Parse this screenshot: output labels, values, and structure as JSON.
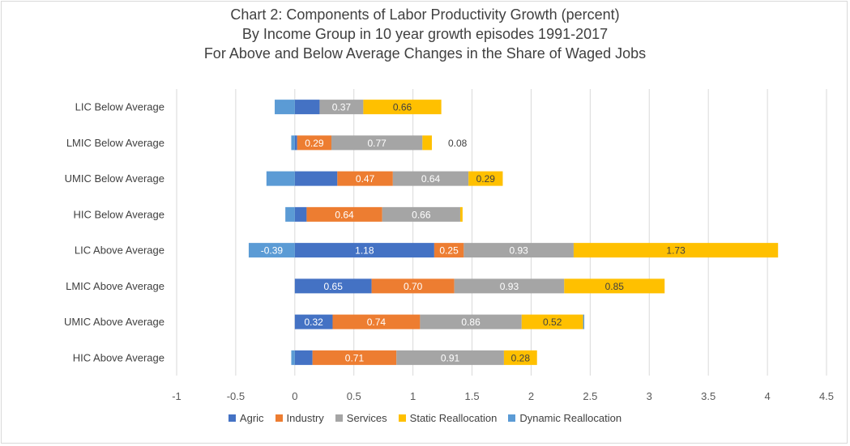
{
  "chart_data": {
    "type": "bar",
    "orientation": "horizontal",
    "stacked": true,
    "title": [
      "Chart 2: Components of Labor Productivity Growth (percent)",
      "By Income Group in 10 year growth episodes 1991-2017",
      "For Above and Below Average Changes in the Share of Waged Jobs"
    ],
    "categories": [
      "LIC Below Average",
      "LMIC Below Average",
      "UMIC Below Average",
      "HIC Below Average",
      "LIC Above Average",
      "LMIC Above Average",
      "UMIC Above Average",
      "HIC Above Average"
    ],
    "series": [
      {
        "name": "Agric",
        "color": "#4472c4",
        "values": [
          0.21,
          0.02,
          0.36,
          0.1,
          1.18,
          0.65,
          0.32,
          0.15
        ],
        "labels": [
          "",
          "",
          "",
          "",
          "1.18",
          "0.65",
          "0.32",
          ""
        ]
      },
      {
        "name": "Industry",
        "color": "#ed7d31",
        "values": [
          0,
          0.29,
          0.47,
          0.64,
          0.25,
          0.7,
          0.74,
          0.71
        ],
        "labels": [
          "",
          "0.29",
          "0.47",
          "0.64",
          "0.25",
          "0.70",
          "0.74",
          "0.71"
        ]
      },
      {
        "name": "Services",
        "color": "#a5a5a5",
        "values": [
          0.37,
          0.77,
          0.64,
          0.66,
          0.93,
          0.93,
          0.86,
          0.91
        ],
        "labels": [
          "0.37",
          "0.77",
          "0.64",
          "0.66",
          "0.93",
          "0.93",
          "0.86",
          "0.91"
        ]
      },
      {
        "name": "Static Reallocation",
        "color": "#ffc000",
        "values": [
          0.66,
          0.08,
          0.29,
          0.02,
          1.73,
          0.85,
          0.52,
          0.28
        ],
        "labels": [
          "0.66",
          "0.08",
          "0.29",
          "",
          "1.73",
          "0.85",
          "0.52",
          "0.28"
        ]
      },
      {
        "name": "Dynamic Reallocation",
        "color": "#5b9bd5",
        "values": [
          -0.17,
          -0.03,
          -0.24,
          -0.08,
          -0.39,
          0,
          0.01,
          -0.03
        ],
        "labels": [
          "",
          "",
          "",
          "",
          "-0.39",
          "",
          "",
          ""
        ]
      }
    ],
    "xlim": [
      -1,
      4.5
    ],
    "xticks": [
      "-1",
      "-0.5",
      "0",
      "0.5",
      "1",
      "1.5",
      "2",
      "2.5",
      "3",
      "3.5",
      "4",
      "4.5"
    ],
    "xtick_values": [
      -1,
      -0.5,
      0,
      0.5,
      1,
      1.5,
      2,
      2.5,
      3,
      3.5,
      4,
      4.5
    ],
    "grid": "vertical",
    "legend": "bottom"
  }
}
